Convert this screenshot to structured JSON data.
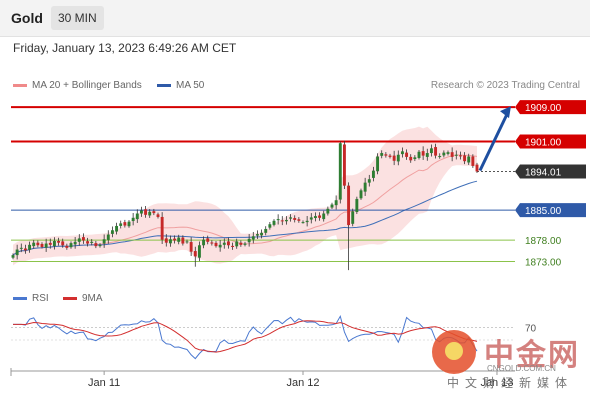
{
  "header": {
    "asset": "Gold",
    "timeframe": "30 MIN"
  },
  "datetime": "Friday, January 13, 2023 6:49:26 AM CET",
  "legend": {
    "bollinger_label": "MA 20 + Bollinger Bands",
    "ma50_label": "MA 50"
  },
  "credit": "Research © 2023 Trading Central",
  "rsi_legend": {
    "rsi_label": "RSI",
    "ma_label": "9MA"
  },
  "colors": {
    "up": "#2e7d32",
    "down": "#c62828",
    "resistance": "#d50000",
    "support": "#2f5aa8",
    "green_level": "#8bc34a",
    "band": "#f8c9c9",
    "ma20": "#f0a0a0",
    "ma50": "#3f6fb8",
    "arrow": "#1e4fa0",
    "rsi": "#4a78d0",
    "rsi_ma": "#d32f2f"
  },
  "watermark": {
    "name": "中金网",
    "url": "CNGOLD.COM.CN",
    "tagline": "中文财经新媒体"
  },
  "chart_data": {
    "type": "candlestick",
    "title": "Gold",
    "timeframe": "30 MIN",
    "xlabel": "",
    "ylabel": "",
    "x_ticks": [
      "Jan 11",
      "Jan 12",
      "Jan 13"
    ],
    "ylim": [
      1868,
      1913
    ],
    "levels": [
      {
        "value": 1909.0,
        "label": "1909.00",
        "kind": "resistance"
      },
      {
        "value": 1901.0,
        "label": "1901.00",
        "kind": "resistance"
      },
      {
        "value": 1894.01,
        "label": "1894.01",
        "kind": "last_price"
      },
      {
        "value": 1885.0,
        "label": "1885.00",
        "kind": "support"
      },
      {
        "value": 1878.0,
        "label": "1878.00",
        "kind": "target"
      },
      {
        "value": 1873.0,
        "label": "1873.00",
        "kind": "target"
      }
    ],
    "forecast_arrow": {
      "from": 1894.0,
      "to": 1909.0,
      "direction": "up"
    },
    "candles_close": [
      1874.5,
      1875.8,
      1876.2,
      1875.6,
      1876.9,
      1877.4,
      1876.8,
      1876.4,
      1877.2,
      1876.9,
      1877.8,
      1877.4,
      1876.8,
      1876.2,
      1877.3,
      1877.6,
      1878.4,
      1877.9,
      1877.2,
      1877.6,
      1876.6,
      1876.9,
      1878.2,
      1879.3,
      1880.3,
      1881.3,
      1881.9,
      1881.4,
      1882.3,
      1883.2,
      1884.2,
      1884.9,
      1883.9,
      1884.6,
      1884.3,
      1883.4,
      1878.1,
      1877.4,
      1878.2,
      1877.9,
      1878.6,
      1877.2,
      1877.7,
      1875.3,
      1874.2,
      1876.8,
      1878.1,
      1877.6,
      1877.2,
      1876.6,
      1876.9,
      1877.4,
      1876.8,
      1876.4,
      1877.7,
      1876.9,
      1877.2,
      1878.3,
      1878.9,
      1879.4,
      1879.7,
      1880.6,
      1881.7,
      1882.5,
      1882.9,
      1882.4,
      1882.7,
      1883.3,
      1882.7,
      1882.5,
      1882.2,
      1882.5,
      1883.3,
      1883.6,
      1883.2,
      1884.2,
      1885.3,
      1886.3,
      1887.3,
      1900.6,
      1890.7,
      1881.5,
      1884.7,
      1887.6,
      1889.6,
      1891.4,
      1892.2,
      1894.2,
      1897.5,
      1898.3,
      1897.7,
      1897.4,
      1896.5,
      1897.9,
      1898.7,
      1897.4,
      1896.6,
      1897.3,
      1898.6,
      1897.7,
      1898.3,
      1899.4,
      1897.7,
      1897.6,
      1898.4,
      1898.5,
      1897.4,
      1897.9,
      1897.6,
      1896.4,
      1897.5,
      1895.3,
      1894.0
    ],
    "indicators": {
      "rsi": {
        "name": "RSI",
        "reference_level": 70,
        "tick_labels": [
          "70"
        ]
      },
      "rsi_ma": {
        "name": "9MA",
        "period": 9
      },
      "bollinger": {
        "name": "MA 20 + Bollinger Bands",
        "period": 20
      },
      "ma50": {
        "name": "MA 50",
        "period": 50
      }
    },
    "grid": false,
    "legend_position": "top-left"
  }
}
